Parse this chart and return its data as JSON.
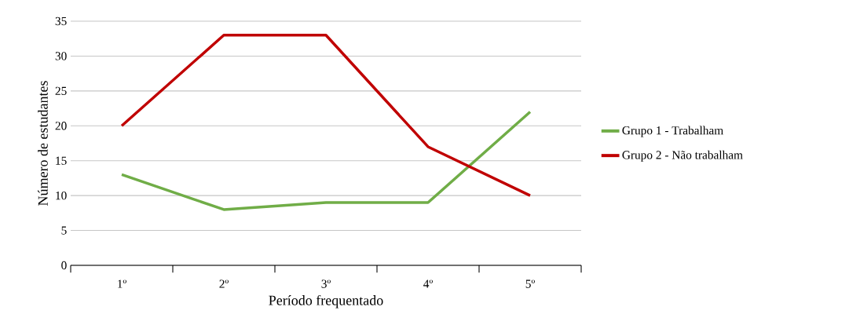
{
  "chart_data": {
    "type": "line",
    "xlabel": "Período frequentado",
    "ylabel": "Número de estudantes",
    "categories": [
      "1º",
      "2º",
      "3º",
      "4º",
      "5º"
    ],
    "series": [
      {
        "name": "Grupo 1 - Trabalham",
        "color": "#70ad47",
        "values": [
          13,
          8,
          9,
          9,
          22
        ]
      },
      {
        "name": "Grupo 2 - Não trabalham",
        "color": "#c00000",
        "values": [
          20,
          33,
          33,
          17,
          10
        ]
      }
    ],
    "ylim": [
      0,
      35
    ],
    "yticks": [
      0,
      5,
      10,
      15,
      20,
      25,
      30,
      35
    ],
    "grid": "y",
    "legend": "right",
    "marker": "none",
    "line_style": "solid"
  }
}
